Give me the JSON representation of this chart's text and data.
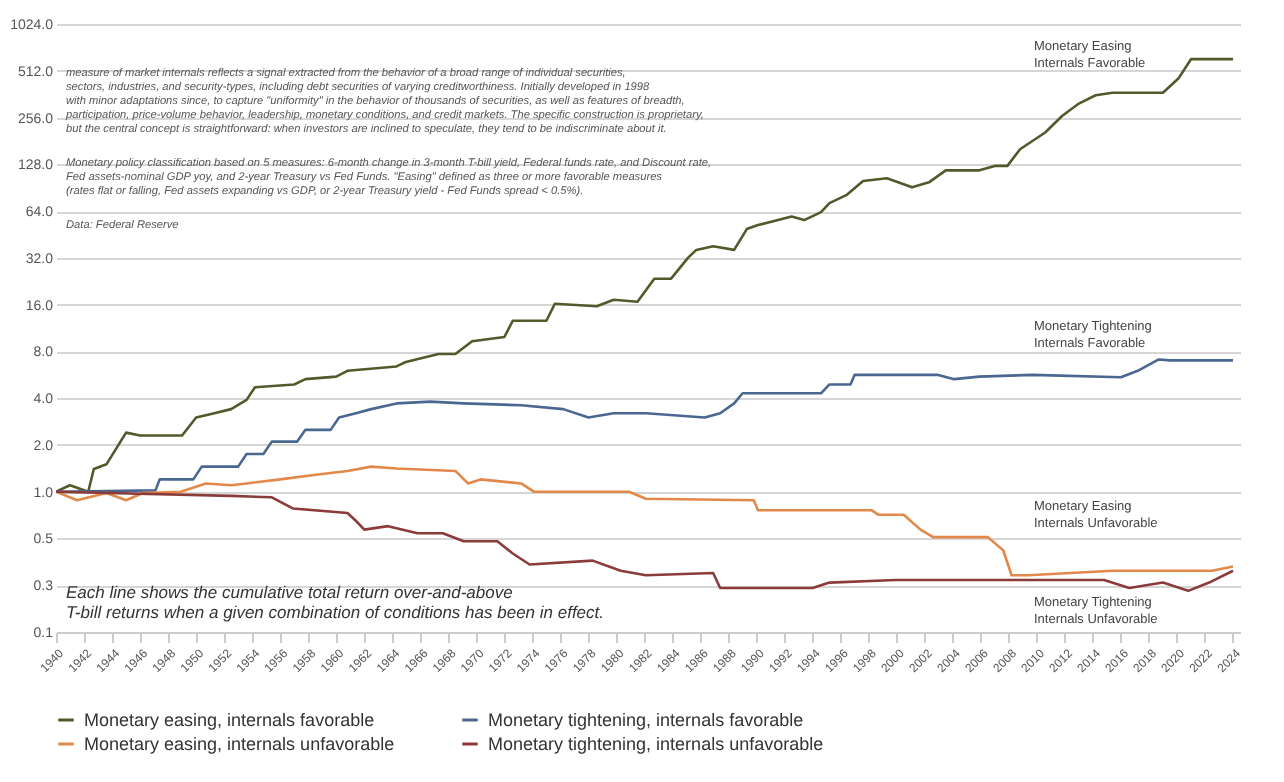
{
  "chart_data": {
    "type": "line",
    "ylim": [
      0.125,
      1024
    ],
    "log": "y",
    "yticks": [
      {
        "value": 0.125,
        "label": "0.1"
      },
      {
        "value": 0.25,
        "label": "0.3"
      },
      {
        "value": 0.5,
        "label": "0.5"
      },
      {
        "value": 1,
        "label": "1.0"
      },
      {
        "value": 2,
        "label": "2.0"
      },
      {
        "value": 4,
        "label": "4.0"
      },
      {
        "value": 8,
        "label": "8.0"
      },
      {
        "value": 16,
        "label": "16.0"
      },
      {
        "value": 32,
        "label": "32.0"
      },
      {
        "value": 64,
        "label": "64.0"
      },
      {
        "value": 128,
        "label": "128.0"
      },
      {
        "value": 256,
        "label": "256.0"
      },
      {
        "value": 512,
        "label": "512.0"
      },
      {
        "value": 1024,
        "label": "1024.0"
      }
    ],
    "xlim": [
      1940,
      2024.5
    ],
    "xticks": [
      1940,
      1942,
      1944,
      1946,
      1948,
      1950,
      1952,
      1954,
      1956,
      1958,
      1960,
      1962,
      1964,
      1966,
      1968,
      1970,
      1972,
      1974,
      1976,
      1978,
      1980,
      1982,
      1984,
      1986,
      1988,
      1990,
      1992,
      1994,
      1996,
      1998,
      2000,
      2002,
      2004,
      2006,
      2008,
      2010,
      2012,
      2014,
      2016,
      2018,
      2020,
      2022,
      2024
    ],
    "grid": "y",
    "legend": "bottom",
    "line_style": "solid",
    "series": [
      {
        "name": "Monetary easing, internals favorable",
        "color": "#4f5b2b",
        "x": [
          1940,
          1941,
          1942.3,
          1942.7,
          1943.6,
          1945,
          1946,
          1949,
          1950,
          1951.3,
          1952.5,
          1953.6,
          1954.2,
          1957,
          1957.8,
          1960,
          1960.8,
          1964.3,
          1964.9,
          1967.3,
          1968.5,
          1969.7,
          1972,
          1972.6,
          1975,
          1975.6,
          1978.6,
          1979.8,
          1981.5,
          1982.7,
          1983.9,
          1985.1,
          1985.7,
          1986.9,
          1988.4,
          1989.3,
          1990.1,
          1992.5,
          1993.4,
          1994.6,
          1995.2,
          1996.4,
          1997.6,
          1999.3,
          2001.1,
          2002.3,
          2003.5,
          2005.9,
          2007,
          2007.9,
          2008.8,
          2010.6,
          2011.8,
          2013,
          2014.2,
          2015.4,
          2019,
          2020.1,
          2021,
          2024
        ],
        "values": [
          1.0,
          1.1,
          1.0,
          1.4,
          1.5,
          2.4,
          2.3,
          2.3,
          3.0,
          3.2,
          3.4,
          3.9,
          4.7,
          4.9,
          5.3,
          5.5,
          6.0,
          6.4,
          6.8,
          7.7,
          7.7,
          9.3,
          9.9,
          12.6,
          12.6,
          16.2,
          15.6,
          17.2,
          16.7,
          23.5,
          23.5,
          32,
          36,
          38,
          36,
          49,
          52,
          59,
          56,
          63,
          72,
          81,
          100,
          104,
          91,
          98,
          117,
          117,
          125,
          125,
          160,
          205,
          262,
          315,
          356,
          370,
          370,
          456,
          608,
          608
        ]
      },
      {
        "name": "Monetary tightening, internals favorable",
        "color": "#4a6791",
        "x": [
          1940,
          1947.1,
          1947.4,
          1949.8,
          1950.4,
          1953,
          1953.6,
          1954.8,
          1955.4,
          1957.2,
          1957.8,
          1959.6,
          1960.2,
          1961.4,
          1962.5,
          1964.3,
          1966.7,
          1969.1,
          1973.2,
          1976.2,
          1978,
          1979.8,
          1982.1,
          1986.3,
          1987.4,
          1988.4,
          1989,
          1994.6,
          1995.2,
          1996.7,
          1997,
          2002.9,
          2004.1,
          2005.9,
          2009.7,
          2016,
          2017.2,
          2018.7,
          2019.5,
          2024
        ],
        "values": [
          1.0,
          1.02,
          1.2,
          1.2,
          1.45,
          1.45,
          1.75,
          1.75,
          2.1,
          2.1,
          2.5,
          2.5,
          3.0,
          3.2,
          3.4,
          3.7,
          3.8,
          3.7,
          3.6,
          3.4,
          3.0,
          3.2,
          3.2,
          3.0,
          3.2,
          3.7,
          4.3,
          4.3,
          4.9,
          4.9,
          5.65,
          5.65,
          5.3,
          5.5,
          5.65,
          5.45,
          6.0,
          7.1,
          7.0,
          7.0
        ]
      },
      {
        "name": "Monetary easing, internals unfavorable",
        "color": "#e2894a",
        "x": [
          1940,
          1941.5,
          1943.6,
          1945,
          1946.2,
          1948.9,
          1950.7,
          1952.5,
          1953.6,
          1956,
          1958.4,
          1960.8,
          1962.5,
          1964.3,
          1968.5,
          1969.4,
          1970.3,
          1973.2,
          1974.1,
          1980.9,
          1982.1,
          1989.8,
          1990.1,
          1998.2,
          1998.7,
          2000.5,
          2001.7,
          2002.6,
          2006.5,
          2007.6,
          2008.2,
          2009.4,
          2015.4,
          2019,
          2022.5,
          2024
        ],
        "values": [
          1.0,
          0.88,
          0.98,
          0.88,
          0.98,
          1.0,
          1.13,
          1.1,
          1.13,
          1.2,
          1.28,
          1.36,
          1.45,
          1.41,
          1.36,
          1.13,
          1.2,
          1.13,
          1.0,
          1.0,
          0.9,
          0.88,
          0.76,
          0.76,
          0.71,
          0.71,
          0.57,
          0.51,
          0.51,
          0.42,
          0.29,
          0.29,
          0.31,
          0.31,
          0.31,
          0.33
        ]
      },
      {
        "name": "Monetary tightening, internals unfavorable",
        "color": "#8c3b3b",
        "x": [
          1940,
          1952.5,
          1955.4,
          1956.9,
          1960.8,
          1961.4,
          1962,
          1963.7,
          1965.8,
          1967.6,
          1969.1,
          1971.5,
          1972.6,
          1973.8,
          1978.3,
          1980.3,
          1982.1,
          1986.9,
          1987.4,
          1994,
          1995.2,
          1999.9,
          2004.1,
          2007.6,
          2014.8,
          2016.6,
          2019,
          2020.8,
          2022.3,
          2024
        ],
        "values": [
          1.0,
          0.94,
          0.92,
          0.78,
          0.73,
          0.65,
          0.57,
          0.6,
          0.54,
          0.54,
          0.48,
          0.48,
          0.4,
          0.34,
          0.36,
          0.31,
          0.29,
          0.3,
          0.24,
          0.24,
          0.26,
          0.27,
          0.27,
          0.27,
          0.27,
          0.24,
          0.26,
          0.23,
          0.26,
          0.31
        ]
      }
    ],
    "annotations": [
      "measure of market internals reflects a signal extracted from the behavior of a broad range of individual securities,\nsectors, industries, and security-types, including debt securities of varying creditworthiness. Initially developed in 1998\nwith minor adaptations since, to capture \"uniformity\" in the behavior of thousands of securities, as well as features of breadth,\nparticipation, price-volume behavior, leadership, monetary conditions, and credit markets. The specific construction is proprietary,\nbut the central concept is straightforward: when investors are inclined to speculate, they tend to be indiscriminate about it.",
      "Monetary policy classification based on 5 measures: 6-month change in 3-month T-bill yield, Federal funds rate, and Discount rate,\nFed assets-nominal GDP yoy, and 2-year Treasury vs Fed Funds. \"Easing\" defined as three or more favorable measures\n(rates flat or falling, Fed assets expanding vs GDP, or 2-year Treasury yield - Fed Funds spread < 0.5%).",
      "Data: Federal Reserve",
      "Each line shows the cumulative total return over-and-above\nT-bill returns when a given combination of conditions has been in effect.",
      "Monetary Easing\nInternals Favorable",
      "Monetary Tightening\nInternals Favorable",
      "Monetary Easing\nInternals Unfavorable",
      "Monetary Tightening\nInternals Unfavorable"
    ]
  }
}
